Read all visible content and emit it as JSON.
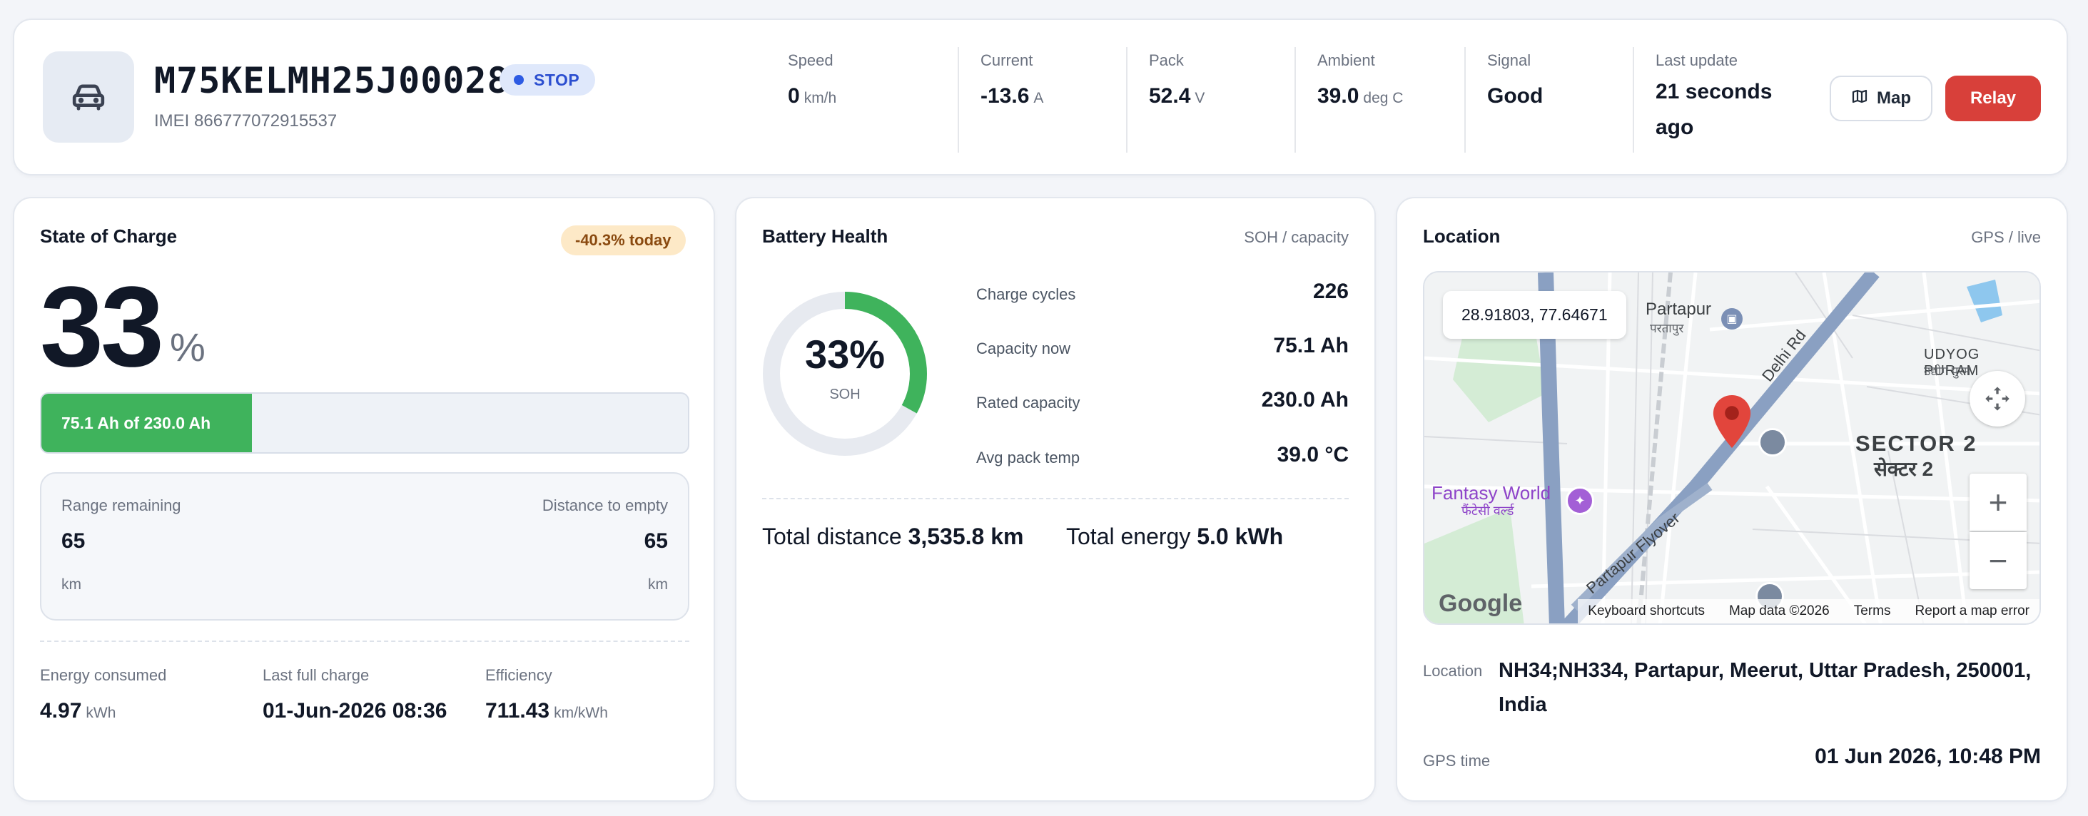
{
  "header": {
    "vehicle_id": "M75KELMH25J000281",
    "status": "STOP",
    "imei": "IMEI 866777072915537",
    "metrics": [
      {
        "label": "Speed",
        "value": "0",
        "unit": "km/h"
      },
      {
        "label": "Current",
        "value": "-13.6",
        "unit": "A"
      },
      {
        "label": "Pack",
        "value": "52.4",
        "unit": "V"
      },
      {
        "label": "Ambient",
        "value": "39.0",
        "unit": "deg C"
      },
      {
        "label": "Signal",
        "value": "Good",
        "unit": ""
      },
      {
        "label": "Last update",
        "value": "21 seconds ago",
        "unit": ""
      }
    ],
    "map_button": "Map",
    "relay_button": "Relay"
  },
  "soc": {
    "title": "State of Charge",
    "badge": "-40.3% today",
    "percent": "33",
    "percent_sign": "%",
    "fill_fraction": 0.326,
    "bar_label": "75.1 Ah of 230.0 Ah",
    "range_label": "Range remaining",
    "range_value": "65",
    "range_unit": "km",
    "dte_label": "Distance to empty",
    "dte_value": "65",
    "dte_unit": "km",
    "stats": [
      {
        "label": "Energy consumed",
        "value": "4.97",
        "unit": "kWh"
      },
      {
        "label": "Last full charge",
        "value": "01-Jun-2026 08:36",
        "unit": ""
      },
      {
        "label": "Efficiency",
        "value": "711.43",
        "unit": "km/kWh"
      }
    ]
  },
  "health": {
    "title": "Battery Health",
    "aside": "SOH / capacity",
    "soh": "33%",
    "soh_fraction": 0.33,
    "soh_label": "SOH",
    "rows": [
      {
        "label": "Charge cycles",
        "value": "226"
      },
      {
        "label": "Capacity now",
        "value": "75.1 Ah"
      },
      {
        "label": "Rated capacity",
        "value": "230.0 Ah"
      },
      {
        "label": "Avg pack temp",
        "value": "39.0 °C"
      }
    ],
    "total_distance_label": "Total distance",
    "total_distance": "3,535.8 km",
    "total_energy_label": "Total energy",
    "total_energy": "5.0 kWh"
  },
  "location": {
    "title": "Location",
    "aside": "GPS / live",
    "coords": "28.91803, 77.64671",
    "map_labels": {
      "partapur": "Partapur",
      "partapur_hi": "परतापुर",
      "udyog": "UDYOG PURAM",
      "udyog_hi": "उद्योग पुरम",
      "sector": "SECTOR 2",
      "sector_hi": "सेक्टर 2",
      "fantasy": "Fantasy World",
      "fantasy_hi": "फैंटेसी वर्ल्ड",
      "delhi_rd": "Delhi Rd",
      "flyover": "Partapur Flyover",
      "google": "Google",
      "shortcuts": "Keyboard shortcuts",
      "mapdata": "Map data ©2026",
      "terms": "Terms",
      "report": "Report a map error"
    },
    "loc_label": "Location",
    "address": "NH34;NH334, Partapur, Meerut, Uttar Pradesh, 250001, India",
    "gps_time_label": "GPS time",
    "gps_time": "01 Jun 2026, 10:48 PM"
  },
  "colors": {
    "accent_green": "#3fb35c",
    "relay_red": "#d8403a",
    "status_blue": "#2d5be3",
    "badge_amber": "#fde9c7"
  }
}
